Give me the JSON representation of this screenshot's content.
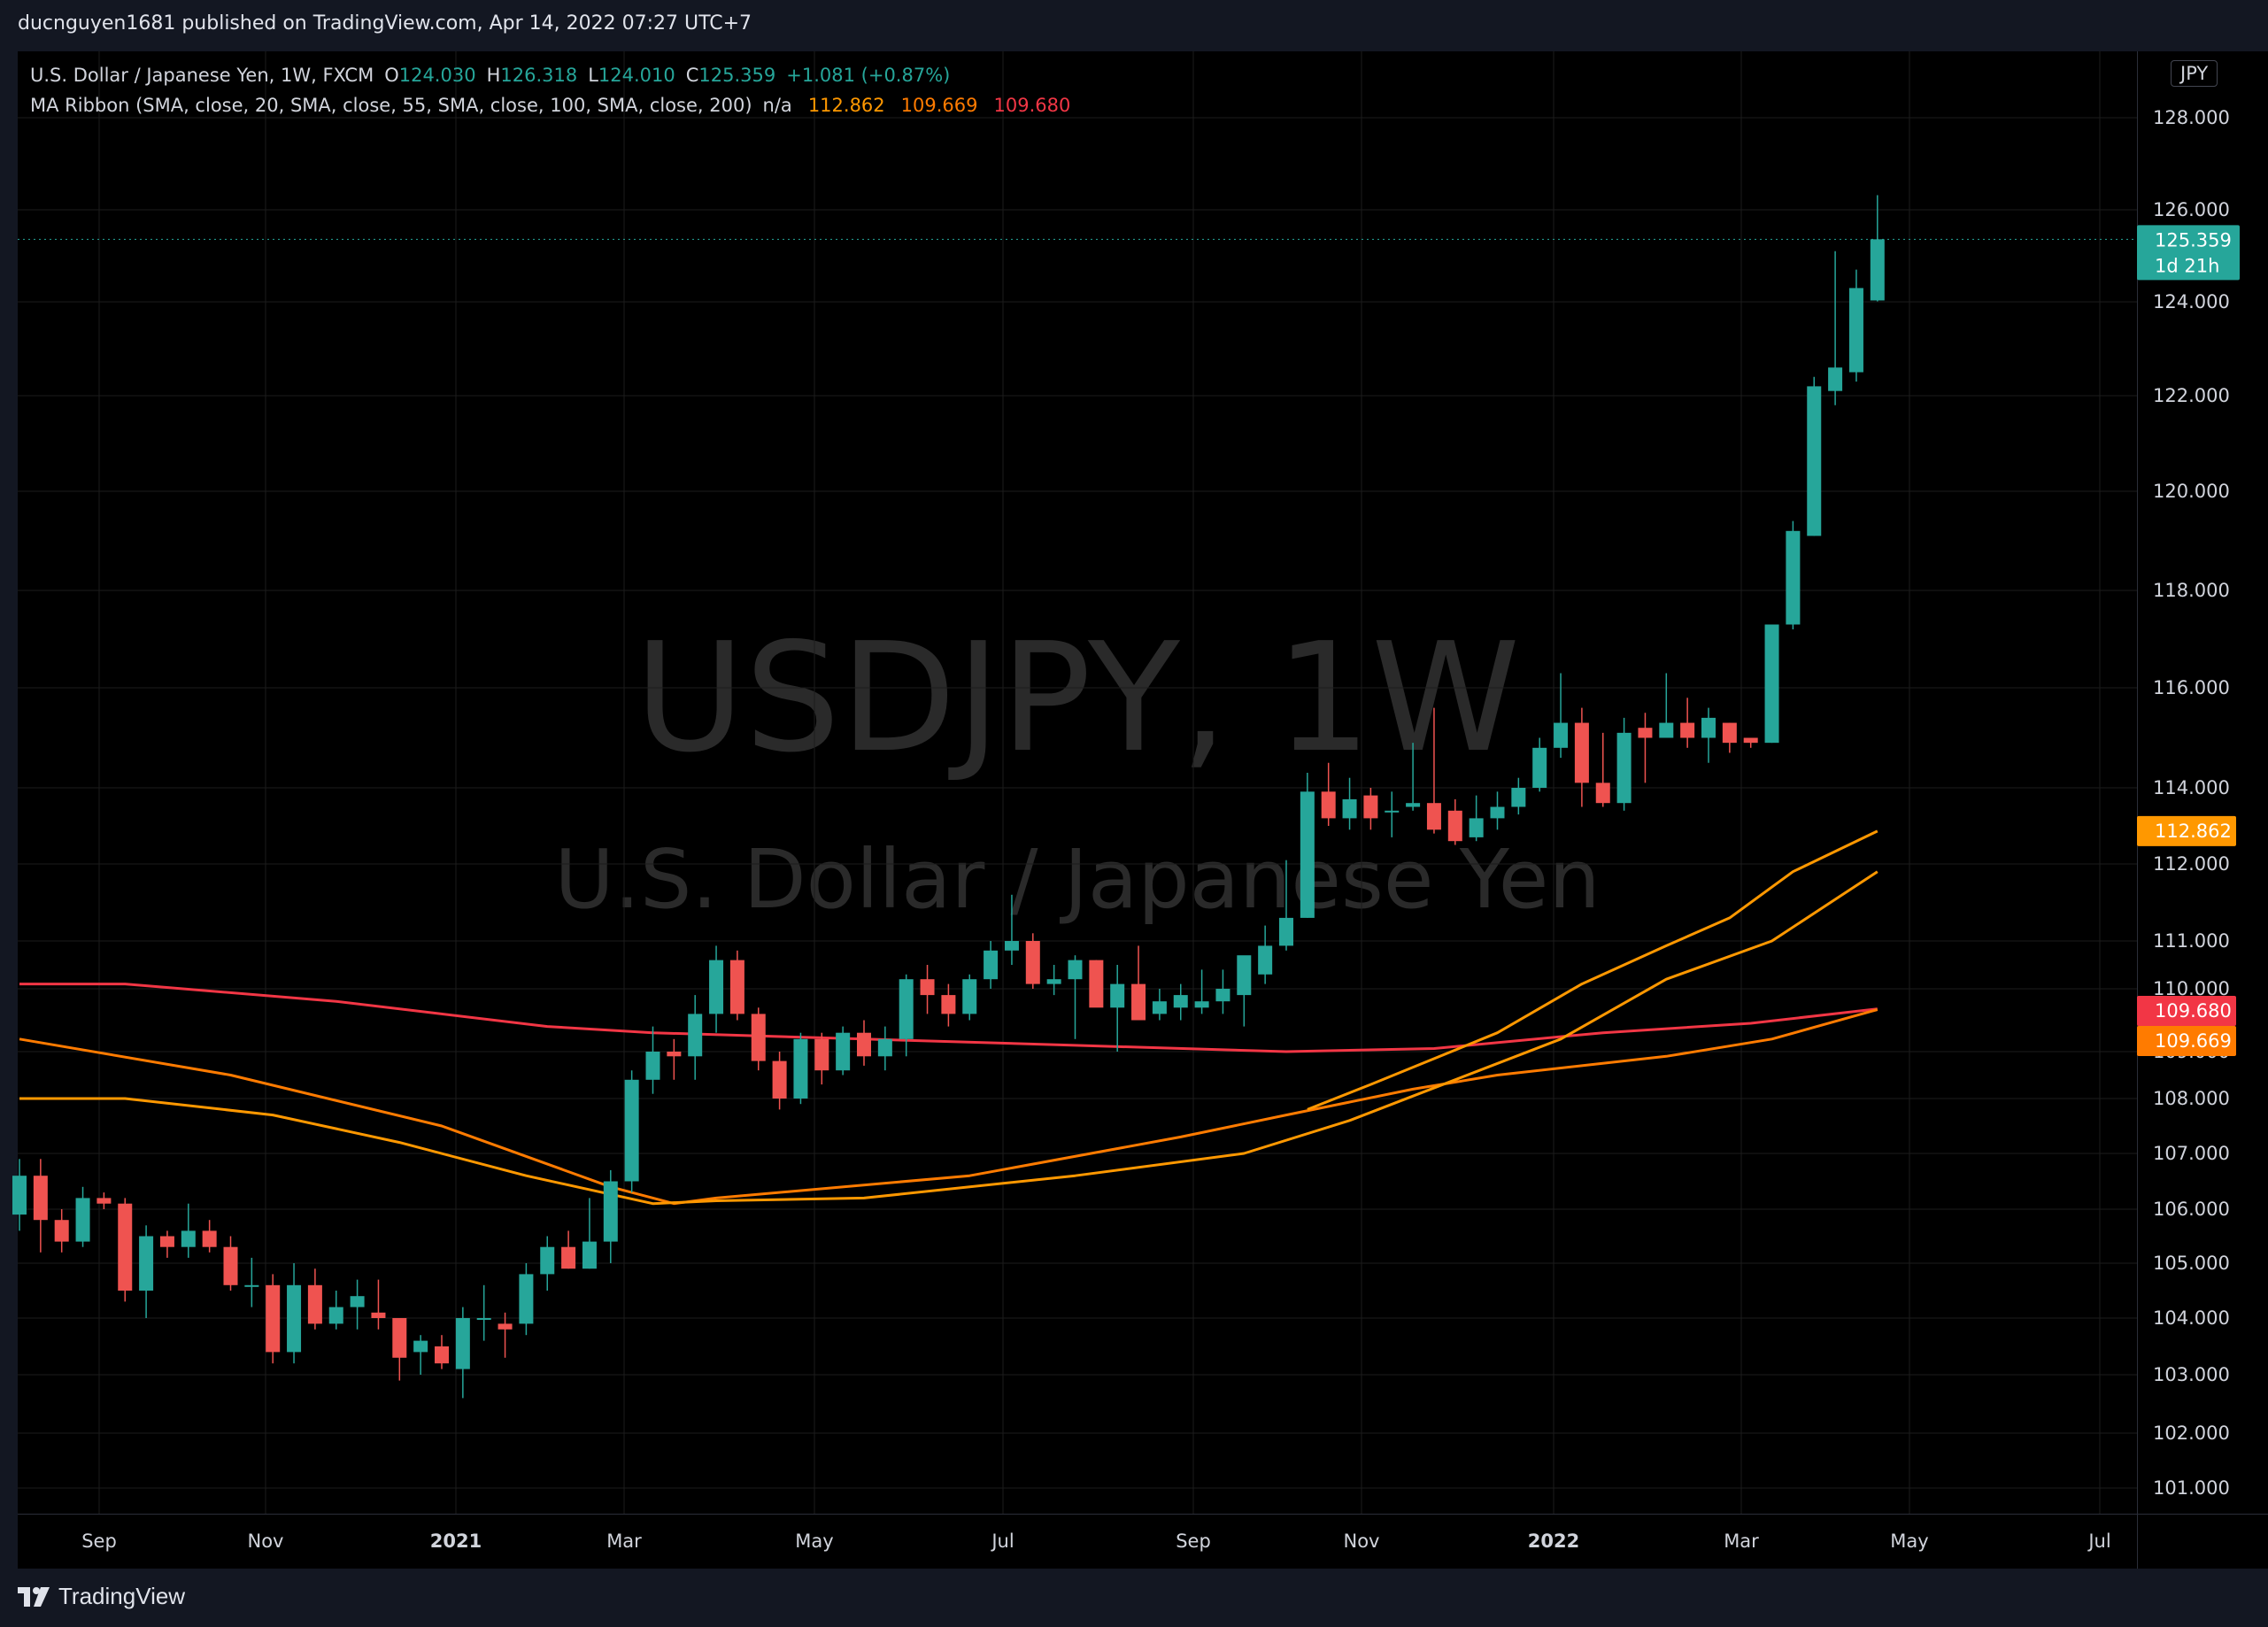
{
  "header": {
    "published_by": "ducnguyen1681 published on TradingView.com, Apr 14, 2022 07:27 UTC+7"
  },
  "legend": {
    "symbol": "U.S. Dollar / Japanese Yen, 1W, FXCM",
    "o_label": "O",
    "o_value": "124.030",
    "h_label": "H",
    "h_value": "126.318",
    "l_label": "L",
    "l_value": "124.010",
    "c_label": "C",
    "c_value": "125.359",
    "change": "+1.081 (+0.87%)",
    "indicator": "MA Ribbon (SMA, close, 20, SMA, close, 55, SMA, close, 100, SMA, close, 200)",
    "na": "n/a",
    "ma20_value": "112.862",
    "ma55_value": "109.669",
    "ma100_value": "109.680"
  },
  "currency_button": "JPY",
  "watermark": {
    "line1": "USDJPY, 1W",
    "line2": "U.S. Dollar / Japanese Yen"
  },
  "price_labels": {
    "last": "125.359",
    "countdown": "1d 21h",
    "ma20": "112.862",
    "ma100": "109.680",
    "ma55": "109.669"
  },
  "brand": "TradingView",
  "colors": {
    "up": "#26a69a",
    "down": "#ef5350",
    "ma20": "#ff9800",
    "ma55": "#ff7b00",
    "ma100": "#f23645",
    "background": "#000000"
  },
  "chart_data": {
    "type": "candlestick",
    "timeframe": "1W",
    "y_ticks": [
      "101.000",
      "102.000",
      "103.000",
      "104.000",
      "105.000",
      "106.000",
      "107.000",
      "108.000",
      "109.000",
      "110.000",
      "111.000",
      "112.000",
      "114.000",
      "116.000",
      "118.000",
      "120.000",
      "122.000",
      "124.000",
      "126.000",
      "128.000"
    ],
    "ylim": [
      100.5,
      128.6
    ],
    "x_ticks": [
      "Sep",
      "Nov",
      "2021",
      "Mar",
      "May",
      "Jul",
      "Sep",
      "Nov",
      "2022",
      "Mar",
      "May",
      "Jul"
    ],
    "candles": [
      {
        "o": 105.9,
        "h": 106.9,
        "l": 105.6,
        "c": 106.6
      },
      {
        "o": 106.6,
        "h": 106.9,
        "l": 105.2,
        "c": 105.8
      },
      {
        "o": 105.8,
        "h": 106.0,
        "l": 105.2,
        "c": 105.4
      },
      {
        "o": 105.4,
        "h": 106.4,
        "l": 105.3,
        "c": 106.2
      },
      {
        "o": 106.2,
        "h": 106.3,
        "l": 106.0,
        "c": 106.1
      },
      {
        "o": 106.1,
        "h": 106.2,
        "l": 104.3,
        "c": 104.5
      },
      {
        "o": 104.5,
        "h": 105.7,
        "l": 104.0,
        "c": 105.5
      },
      {
        "o": 105.5,
        "h": 105.6,
        "l": 105.1,
        "c": 105.3
      },
      {
        "o": 105.3,
        "h": 106.1,
        "l": 105.1,
        "c": 105.6
      },
      {
        "o": 105.6,
        "h": 105.8,
        "l": 105.2,
        "c": 105.3
      },
      {
        "o": 105.3,
        "h": 105.5,
        "l": 104.5,
        "c": 104.6
      },
      {
        "o": 104.6,
        "h": 105.1,
        "l": 104.2,
        "c": 104.6
      },
      {
        "o": 104.6,
        "h": 104.8,
        "l": 103.2,
        "c": 103.4
      },
      {
        "o": 103.4,
        "h": 105.0,
        "l": 103.2,
        "c": 104.6
      },
      {
        "o": 104.6,
        "h": 104.9,
        "l": 103.8,
        "c": 103.9
      },
      {
        "o": 103.9,
        "h": 104.5,
        "l": 103.8,
        "c": 104.2
      },
      {
        "o": 104.2,
        "h": 104.7,
        "l": 103.8,
        "c": 104.4
      },
      {
        "o": 104.1,
        "h": 104.7,
        "l": 103.8,
        "c": 104.0
      },
      {
        "o": 104.0,
        "h": 104.0,
        "l": 102.9,
        "c": 103.3
      },
      {
        "o": 103.4,
        "h": 103.7,
        "l": 103.0,
        "c": 103.6
      },
      {
        "o": 103.5,
        "h": 103.7,
        "l": 103.1,
        "c": 103.2
      },
      {
        "o": 103.1,
        "h": 104.2,
        "l": 102.6,
        "c": 104.0
      },
      {
        "o": 104.0,
        "h": 104.6,
        "l": 103.6,
        "c": 104.0
      },
      {
        "o": 103.9,
        "h": 104.1,
        "l": 103.3,
        "c": 103.8
      },
      {
        "o": 103.9,
        "h": 105.0,
        "l": 103.7,
        "c": 104.8
      },
      {
        "o": 104.8,
        "h": 105.5,
        "l": 104.5,
        "c": 105.3
      },
      {
        "o": 105.3,
        "h": 105.6,
        "l": 104.9,
        "c": 104.9
      },
      {
        "o": 104.9,
        "h": 106.2,
        "l": 104.9,
        "c": 105.4
      },
      {
        "o": 105.4,
        "h": 106.7,
        "l": 105.0,
        "c": 106.5
      },
      {
        "o": 106.5,
        "h": 108.6,
        "l": 106.3,
        "c": 108.4
      },
      {
        "o": 108.4,
        "h": 109.4,
        "l": 108.1,
        "c": 109.0
      },
      {
        "o": 109.0,
        "h": 109.2,
        "l": 108.4,
        "c": 108.9
      },
      {
        "o": 108.9,
        "h": 109.9,
        "l": 108.4,
        "c": 109.6
      },
      {
        "o": 109.6,
        "h": 110.9,
        "l": 109.3,
        "c": 110.6
      },
      {
        "o": 110.6,
        "h": 110.8,
        "l": 109.5,
        "c": 109.6
      },
      {
        "o": 109.6,
        "h": 109.7,
        "l": 108.6,
        "c": 108.8
      },
      {
        "o": 108.8,
        "h": 109.0,
        "l": 107.8,
        "c": 108.0
      },
      {
        "o": 108.0,
        "h": 109.3,
        "l": 107.9,
        "c": 109.2
      },
      {
        "o": 109.2,
        "h": 109.3,
        "l": 108.3,
        "c": 108.6
      },
      {
        "o": 108.6,
        "h": 109.4,
        "l": 108.5,
        "c": 109.3
      },
      {
        "o": 109.3,
        "h": 109.5,
        "l": 108.7,
        "c": 108.9
      },
      {
        "o": 108.9,
        "h": 109.4,
        "l": 108.6,
        "c": 109.2
      },
      {
        "o": 109.2,
        "h": 110.3,
        "l": 108.9,
        "c": 110.2
      },
      {
        "o": 110.2,
        "h": 110.5,
        "l": 109.6,
        "c": 109.9
      },
      {
        "o": 109.9,
        "h": 110.1,
        "l": 109.4,
        "c": 109.6
      },
      {
        "o": 109.6,
        "h": 110.3,
        "l": 109.5,
        "c": 110.2
      },
      {
        "o": 110.2,
        "h": 111.0,
        "l": 110.0,
        "c": 110.8
      },
      {
        "o": 110.8,
        "h": 111.6,
        "l": 110.5,
        "c": 111.0
      },
      {
        "o": 111.0,
        "h": 111.1,
        "l": 110.0,
        "c": 110.1
      },
      {
        "o": 110.1,
        "h": 110.5,
        "l": 109.9,
        "c": 110.2
      },
      {
        "o": 110.2,
        "h": 110.7,
        "l": 109.2,
        "c": 110.6
      },
      {
        "o": 110.6,
        "h": 110.6,
        "l": 109.8,
        "c": 109.7
      },
      {
        "o": 109.7,
        "h": 110.5,
        "l": 109.0,
        "c": 110.1
      },
      {
        "o": 110.1,
        "h": 110.9,
        "l": 109.7,
        "c": 109.5
      },
      {
        "o": 109.6,
        "h": 110.0,
        "l": 109.5,
        "c": 109.8
      },
      {
        "o": 109.7,
        "h": 110.1,
        "l": 109.5,
        "c": 109.9
      },
      {
        "o": 109.7,
        "h": 110.4,
        "l": 109.6,
        "c": 109.8
      },
      {
        "o": 109.8,
        "h": 110.4,
        "l": 109.6,
        "c": 110.0
      },
      {
        "o": 109.9,
        "h": 110.6,
        "l": 109.4,
        "c": 110.7
      },
      {
        "o": 110.3,
        "h": 111.2,
        "l": 110.1,
        "c": 110.9
      },
      {
        "o": 110.9,
        "h": 112.1,
        "l": 110.8,
        "c": 111.3
      },
      {
        "o": 111.3,
        "h": 114.3,
        "l": 111.3,
        "c": 113.9
      },
      {
        "o": 113.9,
        "h": 114.5,
        "l": 113.0,
        "c": 113.2
      },
      {
        "o": 113.2,
        "h": 114.2,
        "l": 112.9,
        "c": 113.7
      },
      {
        "o": 113.8,
        "h": 114.0,
        "l": 112.9,
        "c": 113.2
      },
      {
        "o": 113.4,
        "h": 113.9,
        "l": 112.7,
        "c": 113.4
      },
      {
        "o": 113.5,
        "h": 114.9,
        "l": 113.4,
        "c": 113.6
      },
      {
        "o": 113.6,
        "h": 115.6,
        "l": 112.8,
        "c": 112.9
      },
      {
        "o": 113.4,
        "h": 113.7,
        "l": 112.5,
        "c": 112.6
      },
      {
        "o": 112.7,
        "h": 113.8,
        "l": 112.6,
        "c": 113.2
      },
      {
        "o": 113.2,
        "h": 113.9,
        "l": 112.9,
        "c": 113.5
      },
      {
        "o": 113.5,
        "h": 114.2,
        "l": 113.3,
        "c": 114.0
      },
      {
        "o": 114.0,
        "h": 115.0,
        "l": 113.9,
        "c": 114.8
      },
      {
        "o": 114.8,
        "h": 116.3,
        "l": 114.6,
        "c": 115.3
      },
      {
        "o": 115.3,
        "h": 115.6,
        "l": 113.5,
        "c": 114.1
      },
      {
        "o": 114.1,
        "h": 115.1,
        "l": 113.5,
        "c": 113.6
      },
      {
        "o": 113.6,
        "h": 115.4,
        "l": 113.4,
        "c": 115.1
      },
      {
        "o": 115.2,
        "h": 115.5,
        "l": 114.1,
        "c": 115.0
      },
      {
        "o": 115.0,
        "h": 116.3,
        "l": 115.0,
        "c": 115.3
      },
      {
        "o": 115.3,
        "h": 115.8,
        "l": 114.8,
        "c": 115.0
      },
      {
        "o": 115.0,
        "h": 115.6,
        "l": 114.5,
        "c": 115.4
      },
      {
        "o": 115.3,
        "h": 115.3,
        "l": 114.7,
        "c": 114.9
      },
      {
        "o": 115.0,
        "h": 115.0,
        "l": 114.8,
        "c": 114.9
      },
      {
        "o": 114.9,
        "h": 117.1,
        "l": 114.9,
        "c": 117.3
      },
      {
        "o": 117.3,
        "h": 119.4,
        "l": 117.2,
        "c": 119.2
      },
      {
        "o": 119.1,
        "h": 122.4,
        "l": 119.1,
        "c": 122.2
      },
      {
        "o": 122.1,
        "h": 125.1,
        "l": 121.8,
        "c": 122.6
      },
      {
        "o": 122.5,
        "h": 124.7,
        "l": 122.3,
        "c": 124.3
      },
      {
        "o": 124.03,
        "h": 126.318,
        "l": 124.01,
        "c": 125.359
      }
    ],
    "ma20": [
      {
        "i": 61,
        "v": 107.8
      },
      {
        "i": 64,
        "v": 108.3
      },
      {
        "i": 70,
        "v": 109.3
      },
      {
        "i": 74,
        "v": 110.1
      },
      {
        "i": 78,
        "v": 110.9
      },
      {
        "i": 81,
        "v": 111.3
      },
      {
        "i": 84,
        "v": 111.9
      },
      {
        "i": 88,
        "v": 112.862
      }
    ],
    "ma55": [
      {
        "i": 0,
        "v": 109.2
      },
      {
        "i": 10,
        "v": 108.5
      },
      {
        "i": 20,
        "v": 107.5
      },
      {
        "i": 28,
        "v": 106.4
      },
      {
        "i": 31,
        "v": 106.1
      },
      {
        "i": 33,
        "v": 106.2
      },
      {
        "i": 45,
        "v": 106.6
      },
      {
        "i": 55,
        "v": 107.3
      },
      {
        "i": 60,
        "v": 107.7
      },
      {
        "i": 66,
        "v": 108.2
      },
      {
        "i": 70,
        "v": 108.5
      },
      {
        "i": 74,
        "v": 108.7
      },
      {
        "i": 78,
        "v": 108.9
      },
      {
        "i": 83,
        "v": 109.2
      },
      {
        "i": 88,
        "v": 109.669
      }
    ],
    "ma100": [
      {
        "i": 0,
        "v": 110.1
      },
      {
        "i": 5,
        "v": 110.1
      },
      {
        "i": 15,
        "v": 109.8
      },
      {
        "i": 25,
        "v": 109.4
      },
      {
        "i": 30,
        "v": 109.3
      },
      {
        "i": 40,
        "v": 109.2
      },
      {
        "i": 50,
        "v": 109.1
      },
      {
        "i": 60,
        "v": 109.0
      },
      {
        "i": 67,
        "v": 109.05
      },
      {
        "i": 75,
        "v": 109.3
      },
      {
        "i": 82,
        "v": 109.45
      },
      {
        "i": 88,
        "v": 109.68
      }
    ],
    "ma200": [
      {
        "i": 0,
        "v": 108.0
      },
      {
        "i": 5,
        "v": 108.0
      },
      {
        "i": 12,
        "v": 107.7
      },
      {
        "i": 18,
        "v": 107.2
      },
      {
        "i": 24,
        "v": 106.6
      },
      {
        "i": 30,
        "v": 106.1
      },
      {
        "i": 33,
        "v": 106.15
      },
      {
        "i": 40,
        "v": 106.2
      },
      {
        "i": 50,
        "v": 106.6
      },
      {
        "i": 58,
        "v": 107.0
      },
      {
        "i": 63,
        "v": 107.6
      },
      {
        "i": 68,
        "v": 108.4
      },
      {
        "i": 73,
        "v": 109.2
      },
      {
        "i": 78,
        "v": 110.2
      },
      {
        "i": 83,
        "v": 111.0
      },
      {
        "i": 88,
        "v": 111.9
      }
    ]
  }
}
